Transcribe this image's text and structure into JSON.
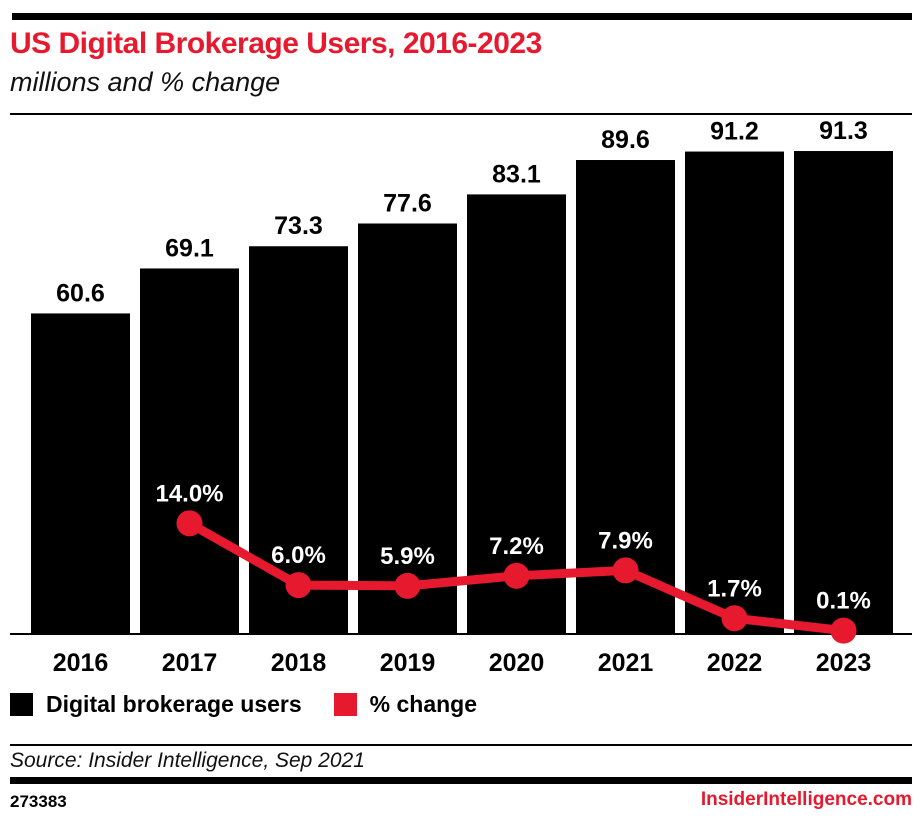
{
  "header": {
    "title": "US Digital Brokerage Users, 2016-2023",
    "subtitle": "millions and % change"
  },
  "colors": {
    "accent_red": "#e6192e",
    "bar_black": "#000000",
    "pct_label_white": "#ffffff"
  },
  "chart_data": {
    "type": "bar",
    "title": "US Digital Brokerage Users, 2016-2023",
    "subtitle": "millions and % change",
    "categories": [
      "2016",
      "2017",
      "2018",
      "2019",
      "2020",
      "2021",
      "2022",
      "2023"
    ],
    "series": [
      {
        "name": "Digital brokerage users",
        "type": "bar",
        "values": [
          60.6,
          69.1,
          73.3,
          77.6,
          83.1,
          89.6,
          91.2,
          91.3
        ],
        "labels": [
          "60.6",
          "69.1",
          "73.3",
          "77.6",
          "83.1",
          "89.6",
          "91.2",
          "91.3"
        ]
      },
      {
        "name": "% change",
        "type": "line",
        "values": [
          null,
          14.0,
          6.0,
          5.9,
          7.2,
          7.9,
          1.7,
          0.1
        ],
        "labels": [
          null,
          "14.0%",
          "6.0%",
          "5.9%",
          "7.2%",
          "7.9%",
          "1.7%",
          "0.1%"
        ]
      }
    ],
    "ylabel": "",
    "xlabel": "",
    "users_axis_range": [
      0,
      96
    ],
    "pct_axis_range": [
      0,
      16
    ],
    "grid": false,
    "legend_position": "bottom"
  },
  "legend": {
    "bar_label": "Digital brokerage users",
    "line_label": "% change"
  },
  "source": {
    "text": "Source: Insider Intelligence, Sep 2021"
  },
  "footer": {
    "chart_id": "273383",
    "site": "InsiderIntelligence.com"
  }
}
